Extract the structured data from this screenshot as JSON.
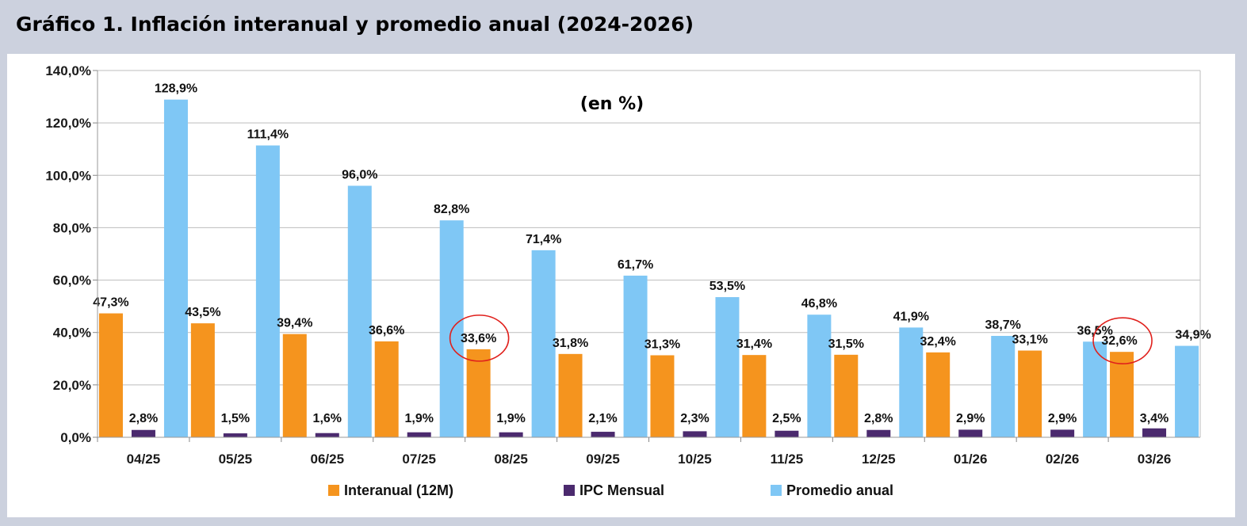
{
  "title": "Gráfico 1. Inflación interanual y promedio anual (2024-2026)",
  "colors": {
    "interanual": "#f5941e",
    "ipc_mensual": "#4b2a6e",
    "promedio_anual": "#7fc7f5",
    "grid": "#bdbdbd",
    "highlight_circle": "#e0201c"
  },
  "chart_data": {
    "type": "bar",
    "subtitle": "(en %)",
    "categories": [
      "04/25",
      "05/25",
      "06/25",
      "07/25",
      "08/25",
      "09/25",
      "10/25",
      "11/25",
      "12/25",
      "01/26",
      "02/26",
      "03/26"
    ],
    "series": [
      {
        "name": "Interanual (12M)",
        "values": [
          47.3,
          43.5,
          39.4,
          36.6,
          33.6,
          31.8,
          31.3,
          31.4,
          31.5,
          32.4,
          33.1,
          32.6
        ],
        "labels": [
          "47,3%",
          "43,5%",
          "39,4%",
          "36,6%",
          "33,6%",
          "31,8%",
          "31,3%",
          "31,4%",
          "31,5%",
          "32,4%",
          "33,1%",
          "32,6%"
        ]
      },
      {
        "name": "IPC Mensual",
        "values": [
          2.8,
          1.5,
          1.6,
          1.9,
          1.9,
          2.1,
          2.3,
          2.5,
          2.8,
          2.9,
          2.9,
          3.4
        ],
        "labels": [
          "2,8%",
          "1,5%",
          "1,6%",
          "1,9%",
          "1,9%",
          "2,1%",
          "2,3%",
          "2,5%",
          "2,8%",
          "2,9%",
          "2,9%",
          "3,4%"
        ]
      },
      {
        "name": "Promedio anual",
        "values": [
          128.9,
          111.4,
          96.0,
          82.8,
          71.4,
          61.7,
          53.5,
          46.8,
          41.9,
          38.7,
          36.5,
          34.9
        ],
        "labels": [
          "128,9%",
          "111,4%",
          "96,0%",
          "82,8%",
          "71,4%",
          "61,7%",
          "53,5%",
          "46,8%",
          "41,9%",
          "38,7%",
          "36,5%",
          "34,9%"
        ]
      }
    ],
    "ylim": [
      0,
      140
    ],
    "yticks": [
      "0,0%",
      "20,0%",
      "40,0%",
      "60,0%",
      "80,0%",
      "100,0%",
      "120,0%",
      "140,0%"
    ],
    "grid": true,
    "legend_position": "bottom",
    "highlighted": [
      {
        "series": "Interanual (12M)",
        "category": "08/25"
      },
      {
        "series": "Interanual (12M)",
        "category": "03/26"
      }
    ]
  }
}
